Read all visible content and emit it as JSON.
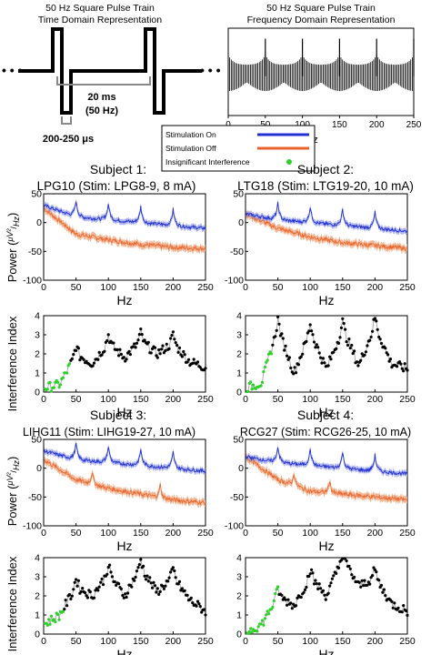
{
  "figure": {
    "top_left": {
      "title_line1": "50 Hz Square Pulse Train",
      "title_line2": "Time Domain Representation",
      "period_label": "20 ms",
      "freq_label": "(50 Hz)",
      "width_label": "200-250 μs"
    },
    "top_right": {
      "title_line1": "50 Hz Square Pulse Train",
      "title_line2": "Frequency Domain Representation",
      "xlabel": "Hz",
      "x_ticks": [
        "0",
        "50",
        "100",
        "150",
        "200",
        "250"
      ]
    },
    "legend": {
      "items": [
        {
          "label": "Stimulation On",
          "color": "#1f2fd0"
        },
        {
          "label": "Stimulation Off",
          "color": "#e8632b"
        },
        {
          "label": "Insignificant Interference",
          "color": "#2ed12a"
        }
      ]
    },
    "subjects": [
      {
        "title_line1": "Subject 1:",
        "title_line2": "LPG10 (Stim: LPG8-9, 8 mA)"
      },
      {
        "title_line1": "Subject 2:",
        "title_line2": "LTG18 (Stim: LTG19-20, 10 mA)"
      },
      {
        "title_line1": "Subject 3:",
        "title_line2": "LIHG11 (Stim: LIHG19-27, 10 mA)"
      },
      {
        "title_line1": "Subject 4:",
        "title_line2": "RCG27 (Stim: RCG26-25, 10 mA)"
      }
    ],
    "axes": {
      "power_ylabel_prefix": "Power (",
      "power_ylabel_unit_num": "μV²",
      "power_ylabel_unit_den": "Hz",
      "power_ylabel_suffix": ")",
      "power_yticks": [
        "50",
        "0",
        "-50",
        "-100"
      ],
      "index_ylabel": "Interference Index",
      "index_yticks": [
        "0",
        "1",
        "2",
        "3",
        "4"
      ],
      "xlabel": "Hz",
      "x_ticks": [
        "0",
        "50",
        "100",
        "150",
        "200",
        "250"
      ]
    },
    "colors": {
      "stim_on": "#1f2fd0",
      "stim_off": "#e8632b",
      "stim_off_band": "#f2b08c",
      "insignificant": "#2ed12a",
      "index_points": "#000000",
      "index_line": "#9a9a9a"
    }
  },
  "chart_data": [
    {
      "type": "line",
      "panel": "Frequency Domain Representation",
      "xlabel": "Hz",
      "xlim": [
        0,
        250
      ],
      "series": [
        {
          "x": [
            0,
            50,
            100,
            150,
            200,
            250
          ],
          "peak_frequencies_hz": [
            50,
            100,
            150,
            200,
            250
          ]
        }
      ]
    },
    {
      "type": "line",
      "subject": "Subject 1",
      "ylabel": "Power",
      "xlim": [
        0,
        250
      ],
      "ylim": [
        -100,
        50
      ],
      "series": [
        {
          "name": "Stimulation On",
          "x": [
            0,
            50,
            100,
            150,
            200,
            250
          ],
          "baseline": [
            30,
            10,
            5,
            0,
            -5,
            -10
          ],
          "peaks_hz": [
            50,
            100,
            150,
            200
          ]
        },
        {
          "name": "Stimulation Off",
          "x": [
            0,
            50,
            100,
            150,
            200,
            250
          ],
          "baseline": [
            25,
            -20,
            -30,
            -38,
            -43,
            -45
          ]
        }
      ]
    },
    {
      "type": "line",
      "subject": "Subject 2",
      "ylabel": "Power",
      "xlim": [
        0,
        250
      ],
      "ylim": [
        -100,
        50
      ],
      "series": [
        {
          "name": "Stimulation On",
          "x": [
            0,
            50,
            100,
            150,
            200,
            250
          ],
          "baseline": [
            15,
            5,
            0,
            -5,
            -10,
            -15
          ],
          "peaks_hz": [
            50,
            100,
            150,
            200
          ]
        },
        {
          "name": "Stimulation Off",
          "x": [
            0,
            50,
            100,
            150,
            200,
            250
          ],
          "baseline": [
            15,
            -10,
            -25,
            -35,
            -40,
            -45
          ]
        }
      ]
    },
    {
      "type": "line",
      "subject": "Subject 3",
      "ylabel": "Power",
      "xlim": [
        0,
        250
      ],
      "ylim": [
        -100,
        50
      ],
      "series": [
        {
          "name": "Stimulation On",
          "x": [
            0,
            50,
            100,
            150,
            200,
            250
          ],
          "baseline": [
            30,
            15,
            10,
            5,
            0,
            -5
          ],
          "peaks_hz": [
            50,
            100,
            150,
            200
          ]
        },
        {
          "name": "Stimulation Off",
          "x": [
            0,
            50,
            100,
            150,
            200,
            250
          ],
          "baseline": [
            15,
            -20,
            -35,
            -45,
            -55,
            -60
          ],
          "peaks_hz": [
            75,
            180
          ]
        }
      ]
    },
    {
      "type": "line",
      "subject": "Subject 4",
      "ylabel": "Power",
      "xlim": [
        0,
        250
      ],
      "ylim": [
        -100,
        50
      ],
      "series": [
        {
          "name": "Stimulation On",
          "x": [
            0,
            50,
            100,
            150,
            200,
            250
          ],
          "baseline": [
            20,
            10,
            5,
            0,
            -5,
            -10
          ],
          "peaks_hz": [
            50,
            100,
            150,
            200
          ]
        },
        {
          "name": "Stimulation Off",
          "x": [
            0,
            50,
            100,
            150,
            200,
            250
          ],
          "baseline": [
            20,
            -20,
            -40,
            -45,
            -50,
            -55
          ],
          "peaks_hz": [
            75,
            130
          ]
        }
      ]
    },
    {
      "type": "scatter",
      "subject": "Subject 1",
      "ylabel": "Interference Index",
      "xlim": [
        0,
        250
      ],
      "ylim": [
        0,
        4
      ],
      "series": [
        {
          "x": [
            0,
            25,
            50,
            75,
            100,
            125,
            150,
            175,
            200,
            225,
            250
          ],
          "y": [
            0.2,
            0.4,
            2.0,
            1.5,
            2.6,
            1.8,
            2.7,
            2.0,
            2.6,
            1.6,
            1.3
          ]
        }
      ],
      "insignificant_x_range": [
        0,
        40
      ]
    },
    {
      "type": "scatter",
      "subject": "Subject 2",
      "ylabel": "Interference Index",
      "xlim": [
        0,
        250
      ],
      "ylim": [
        0,
        4
      ],
      "series": [
        {
          "x": [
            0,
            25,
            50,
            75,
            100,
            125,
            150,
            175,
            200,
            225,
            250
          ],
          "y": [
            0.2,
            0.5,
            3.4,
            1.0,
            3.2,
            1.2,
            3.3,
            1.4,
            3.5,
            1.5,
            1.2
          ]
        }
      ],
      "insignificant_x_range": [
        0,
        40
      ]
    },
    {
      "type": "scatter",
      "subject": "Subject 3",
      "ylabel": "Interference Index",
      "xlim": [
        0,
        250
      ],
      "ylim": [
        0,
        4
      ],
      "series": [
        {
          "x": [
            0,
            25,
            50,
            75,
            100,
            125,
            150,
            175,
            200,
            225,
            250
          ],
          "y": [
            0.5,
            1.0,
            2.5,
            2.0,
            3.2,
            2.0,
            3.5,
            2.2,
            3.0,
            1.8,
            1.2
          ]
        }
      ],
      "insignificant_x_range": [
        0,
        30
      ]
    },
    {
      "type": "scatter",
      "subject": "Subject 4",
      "ylabel": "Interference Index",
      "xlim": [
        0,
        250
      ],
      "ylim": [
        0,
        4
      ],
      "series": [
        {
          "x": [
            0,
            25,
            50,
            75,
            100,
            125,
            150,
            175,
            200,
            225,
            250
          ],
          "y": [
            0.1,
            0.5,
            2.0,
            1.5,
            3.0,
            2.0,
            4.0,
            2.5,
            3.0,
            1.6,
            1.2
          ]
        }
      ],
      "insignificant_x_range": [
        0,
        50
      ]
    }
  ]
}
